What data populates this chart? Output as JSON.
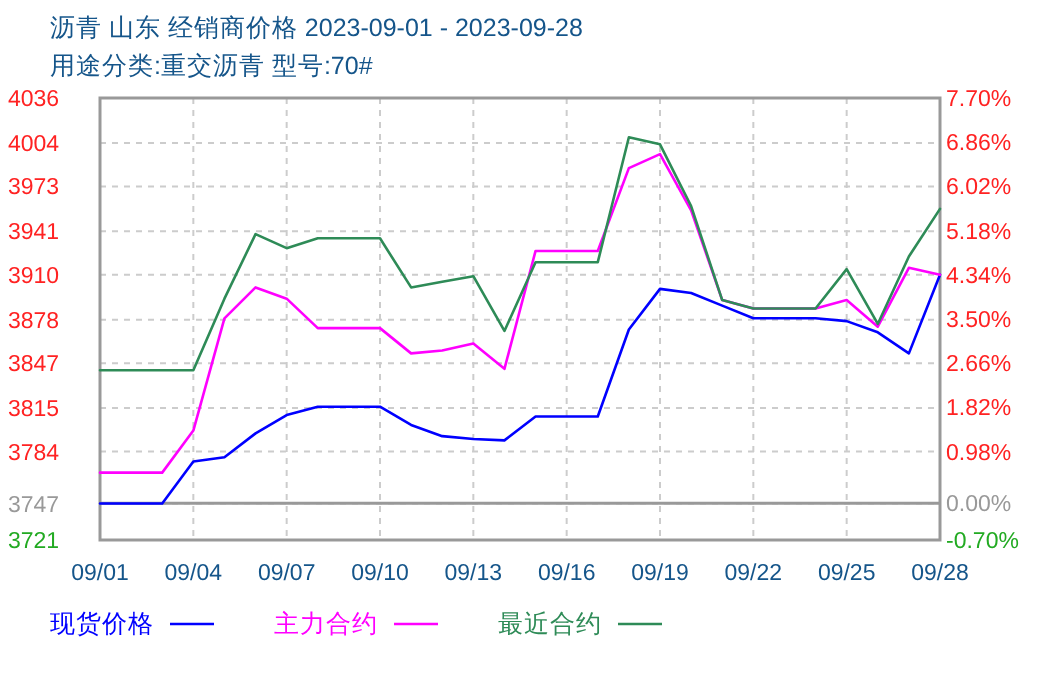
{
  "chart_data": {
    "type": "line",
    "title": "沥青  山东 经销商价格 2023-09-01 - 2023-09-28",
    "subtitle": "用途分类:重交沥青  型号:70#",
    "x": [
      "--09-01",
      "--09-02",
      "--09-03",
      "--09-04",
      "--09-05",
      "--09-06",
      "--09-07",
      "--09-08",
      "--09-09",
      "--09-10",
      "--09-11",
      "--09-12",
      "--09-13",
      "--09-14",
      "--09-15",
      "--09-16",
      "--09-17",
      "--09-18",
      "--09-19",
      "--09-20",
      "--09-21",
      "--09-22",
      "--09-23",
      "--09-24",
      "--09-25",
      "--09-26",
      "--09-27",
      "--09-28"
    ],
    "series": [
      {
        "name": "现货价格",
        "color": "#0000ff",
        "values": [
          3747,
          3747,
          3747,
          3777,
          3780,
          3797,
          3810,
          3816,
          3816,
          3816,
          3803,
          3795,
          3793,
          3792,
          3809,
          3809,
          3809,
          3871,
          3900,
          3897,
          3888,
          3879,
          3879,
          3879,
          3877,
          3869,
          3854,
          3910
        ]
      },
      {
        "name": "主力合约",
        "color": "#ff00ff",
        "values": [
          3769,
          3769,
          3769,
          3799,
          3879,
          3901,
          3893,
          3872,
          3872,
          3872,
          3854,
          3856,
          3861,
          3843,
          3927,
          3927,
          3927,
          3986,
          3996,
          3956,
          3892,
          3886,
          3886,
          3886,
          3892,
          3873,
          3915,
          3910
        ]
      },
      {
        "name": "最近合约",
        "color": "#2e8b57",
        "values": [
          3842,
          3842,
          3842,
          3842,
          3893,
          3939,
          3929,
          3936,
          3936,
          3936,
          3901,
          3905,
          3909,
          3870,
          3919,
          3919,
          3919,
          4008,
          4003,
          3959,
          3892,
          3886,
          3886,
          3886,
          3914,
          3875,
          3923,
          3957
        ]
      }
    ],
    "xlim": [
      "--09-01",
      "--09-28"
    ],
    "xticks": [
      {
        "value": "--09-01",
        "label": "09/01"
      },
      {
        "value": "--09-04",
        "label": "09/04"
      },
      {
        "value": "--09-07",
        "label": "09/07"
      },
      {
        "value": "--09-10",
        "label": "09/10"
      },
      {
        "value": "--09-13",
        "label": "09/13"
      },
      {
        "value": "--09-16",
        "label": "09/16"
      },
      {
        "value": "--09-19",
        "label": "09/19"
      },
      {
        "value": "--09-22",
        "label": "09/22"
      },
      {
        "value": "--09-25",
        "label": "09/25"
      },
      {
        "value": "--09-28",
        "label": "09/28"
      }
    ],
    "ylim": [
      3721,
      4036
    ],
    "yticks": [
      3721,
      3747,
      3784,
      3815,
      3847,
      3878,
      3910,
      3941,
      3973,
      4004,
      4036
    ],
    "y2lim": [
      -0.7,
      7.7
    ],
    "y2ticks": [
      {
        "value": -0.7,
        "label": "-0.70%"
      },
      {
        "value": 0,
        "label": "0.00%"
      },
      {
        "value": 0.98,
        "label": "0.98%"
      },
      {
        "value": 1.82,
        "label": "1.82%"
      },
      {
        "value": 2.66,
        "label": "2.66%"
      },
      {
        "value": 3.5,
        "label": "3.50%"
      },
      {
        "value": 4.34,
        "label": "4.34%"
      },
      {
        "value": 5.18,
        "label": "5.18%"
      },
      {
        "value": 6.02,
        "label": "6.02%"
      },
      {
        "value": 6.86,
        "label": "6.86%"
      },
      {
        "value": 7.7,
        "label": "7.70%"
      }
    ],
    "ref_lines": [
      {
        "axis": "y2",
        "value": 0,
        "color": "#999999"
      }
    ],
    "grid": true,
    "legend": "bottom",
    "line_style": "solid",
    "marker": "none"
  }
}
